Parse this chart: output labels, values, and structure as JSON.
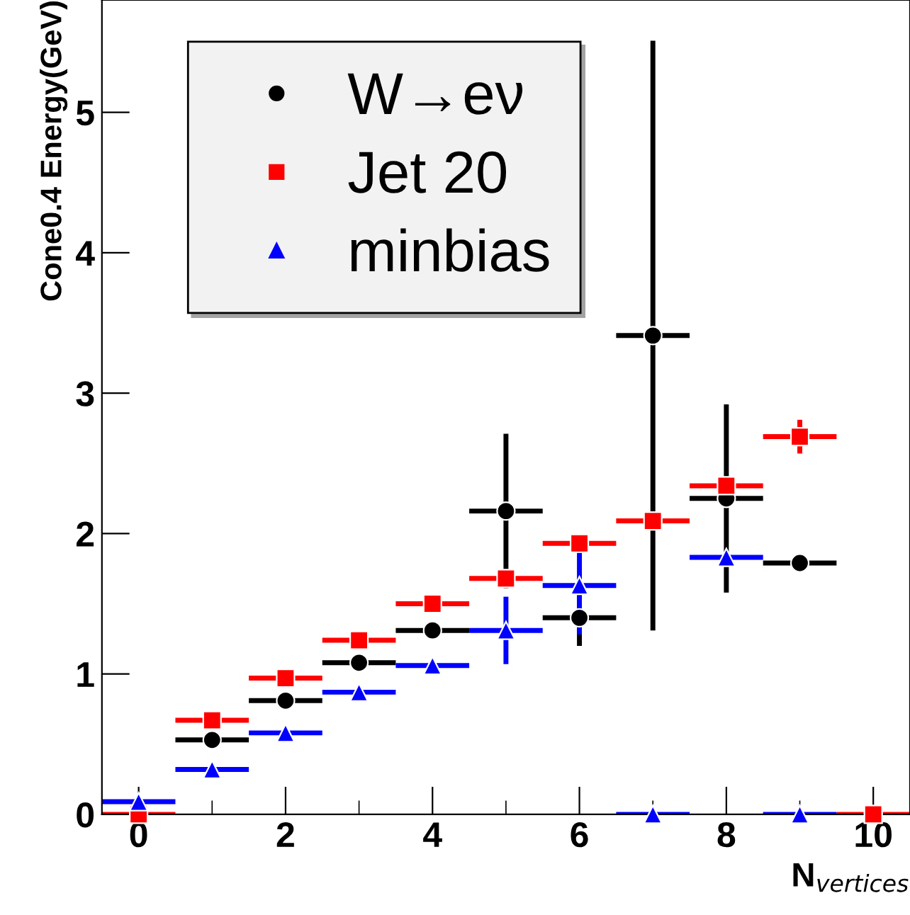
{
  "chart_data": {
    "type": "scatter",
    "xlabel": "N$_{vertices}$",
    "ylabel": "Cone0.4 Energy(GeV)",
    "x": [
      0,
      1,
      2,
      3,
      4,
      5,
      6,
      7,
      8,
      9,
      10
    ],
    "xlim": [
      -0.5,
      10.5
    ],
    "ylim": [
      0,
      5.8
    ],
    "xticks": [
      0,
      2,
      4,
      6,
      8,
      10
    ],
    "yticks": [
      0,
      1,
      2,
      3,
      4,
      5
    ],
    "grid": false,
    "legend": "top left",
    "series": [
      {
        "name": "W→eν",
        "color": "#000000",
        "marker": "circle",
        "values": [
          null,
          0.53,
          0.81,
          1.08,
          1.31,
          2.16,
          1.4,
          3.41,
          2.25,
          1.79,
          null
        ],
        "errors": [
          null,
          null,
          null,
          null,
          0.05,
          0.55,
          0.2,
          2.1,
          0.67,
          null,
          null
        ],
        "xerrors": [
          null,
          0.5,
          0.5,
          0.5,
          0.5,
          0.5,
          0.5,
          0.5,
          0.5,
          0.5,
          null
        ]
      },
      {
        "name": "Jet 20",
        "color": "#ff0000",
        "marker": "square",
        "values": [
          0,
          0.67,
          0.97,
          1.24,
          1.5,
          1.68,
          1.93,
          2.09,
          2.34,
          2.69,
          0
        ],
        "errors": [
          null,
          null,
          null,
          null,
          null,
          null,
          null,
          null,
          null,
          0.12,
          null
        ],
        "xerrors": [
          0.5,
          0.5,
          0.5,
          0.5,
          0.5,
          0.5,
          0.5,
          0.5,
          0.5,
          0.5,
          0.5
        ]
      },
      {
        "name": "minbias",
        "color": "#0000ff",
        "marker": "triangle",
        "values": [
          0.09,
          0.32,
          0.58,
          0.87,
          1.06,
          1.31,
          1.63,
          0,
          1.83,
          0,
          null
        ],
        "errors": [
          null,
          null,
          null,
          null,
          null,
          0.24,
          0.35,
          null,
          null,
          null,
          null
        ],
        "xerrors": [
          0.5,
          0.5,
          0.5,
          0.5,
          0.5,
          0.5,
          0.5,
          0.5,
          0.5,
          0.5,
          null
        ]
      }
    ]
  }
}
